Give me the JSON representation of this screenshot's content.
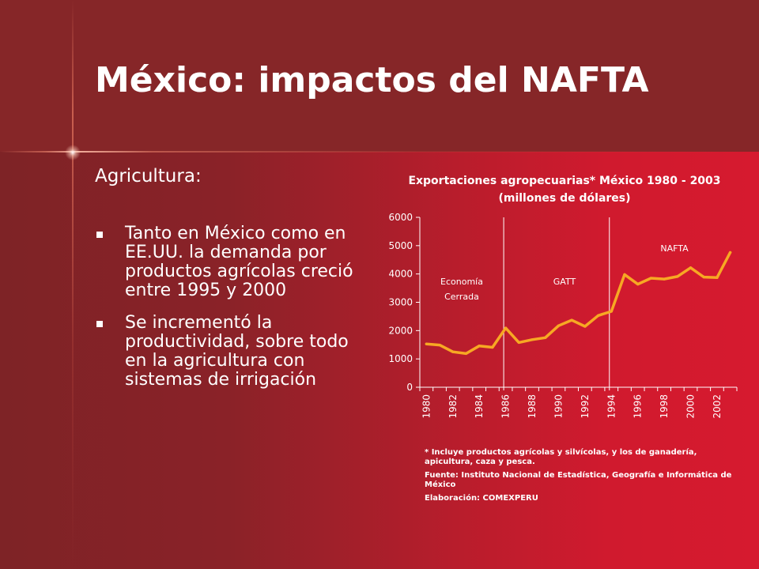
{
  "slide": {
    "title": "México: impactos del NAFTA",
    "section_label": "Agricultura:",
    "bullets": [
      "Tanto en México como en EE.UU. la demanda por productos agrícolas creció entre 1995 y 2000",
      "Se incrementó la productividad, sobre todo en la agricultura con sistemas de irrigación"
    ],
    "colors": {
      "header": "#862628",
      "accent": "#d61a2f",
      "line": "#f7a823"
    }
  },
  "chart_title_line1": "Exportaciones agropecuarias* México 1980 - 2003",
  "chart_title_line2": "(millones de dólares)",
  "notes": {
    "footnote": "* Incluye productos agrícolas y silvícolas, y los de ganadería, apicultura, caza y pesca.",
    "source": "Fuente: Instituto Nacional de Estadística, Geografía e Informática de México",
    "author": "Elaboración: COMEXPERU"
  },
  "chart_data": {
    "type": "line",
    "title": "Exportaciones agropecuarias* México 1980 - 2003 (millones de dólares)",
    "x": [
      1980,
      1981,
      1982,
      1983,
      1984,
      1985,
      1986,
      1987,
      1988,
      1989,
      1990,
      1991,
      1992,
      1993,
      1994,
      1995,
      1996,
      1997,
      1998,
      1999,
      2000,
      2001,
      2002,
      2003
    ],
    "values": [
      1530,
      1490,
      1250,
      1190,
      1460,
      1410,
      2090,
      1580,
      1680,
      1750,
      2170,
      2370,
      2150,
      2530,
      2680,
      3980,
      3640,
      3850,
      3820,
      3910,
      4220,
      3890,
      3870,
      4760
    ],
    "x_tick_labels": [
      "1980",
      "1982",
      "1984",
      "1986",
      "1988",
      "1990",
      "1992",
      "1994",
      "1996",
      "1998",
      "2000",
      "2002"
    ],
    "y_tick_labels": [
      "0",
      "1000",
      "2000",
      "3000",
      "4000",
      "5000",
      "6000"
    ],
    "ylim": [
      0,
      6000
    ],
    "period_dividers": [
      1986,
      1994
    ],
    "annotations": [
      {
        "line1": "Economía",
        "line2": "Cerrada"
      },
      {
        "line1": "GATT",
        "line2": ""
      },
      {
        "line1": "NAFTA",
        "line2": ""
      }
    ],
    "grid": false,
    "line_color": "#f7a823"
  }
}
